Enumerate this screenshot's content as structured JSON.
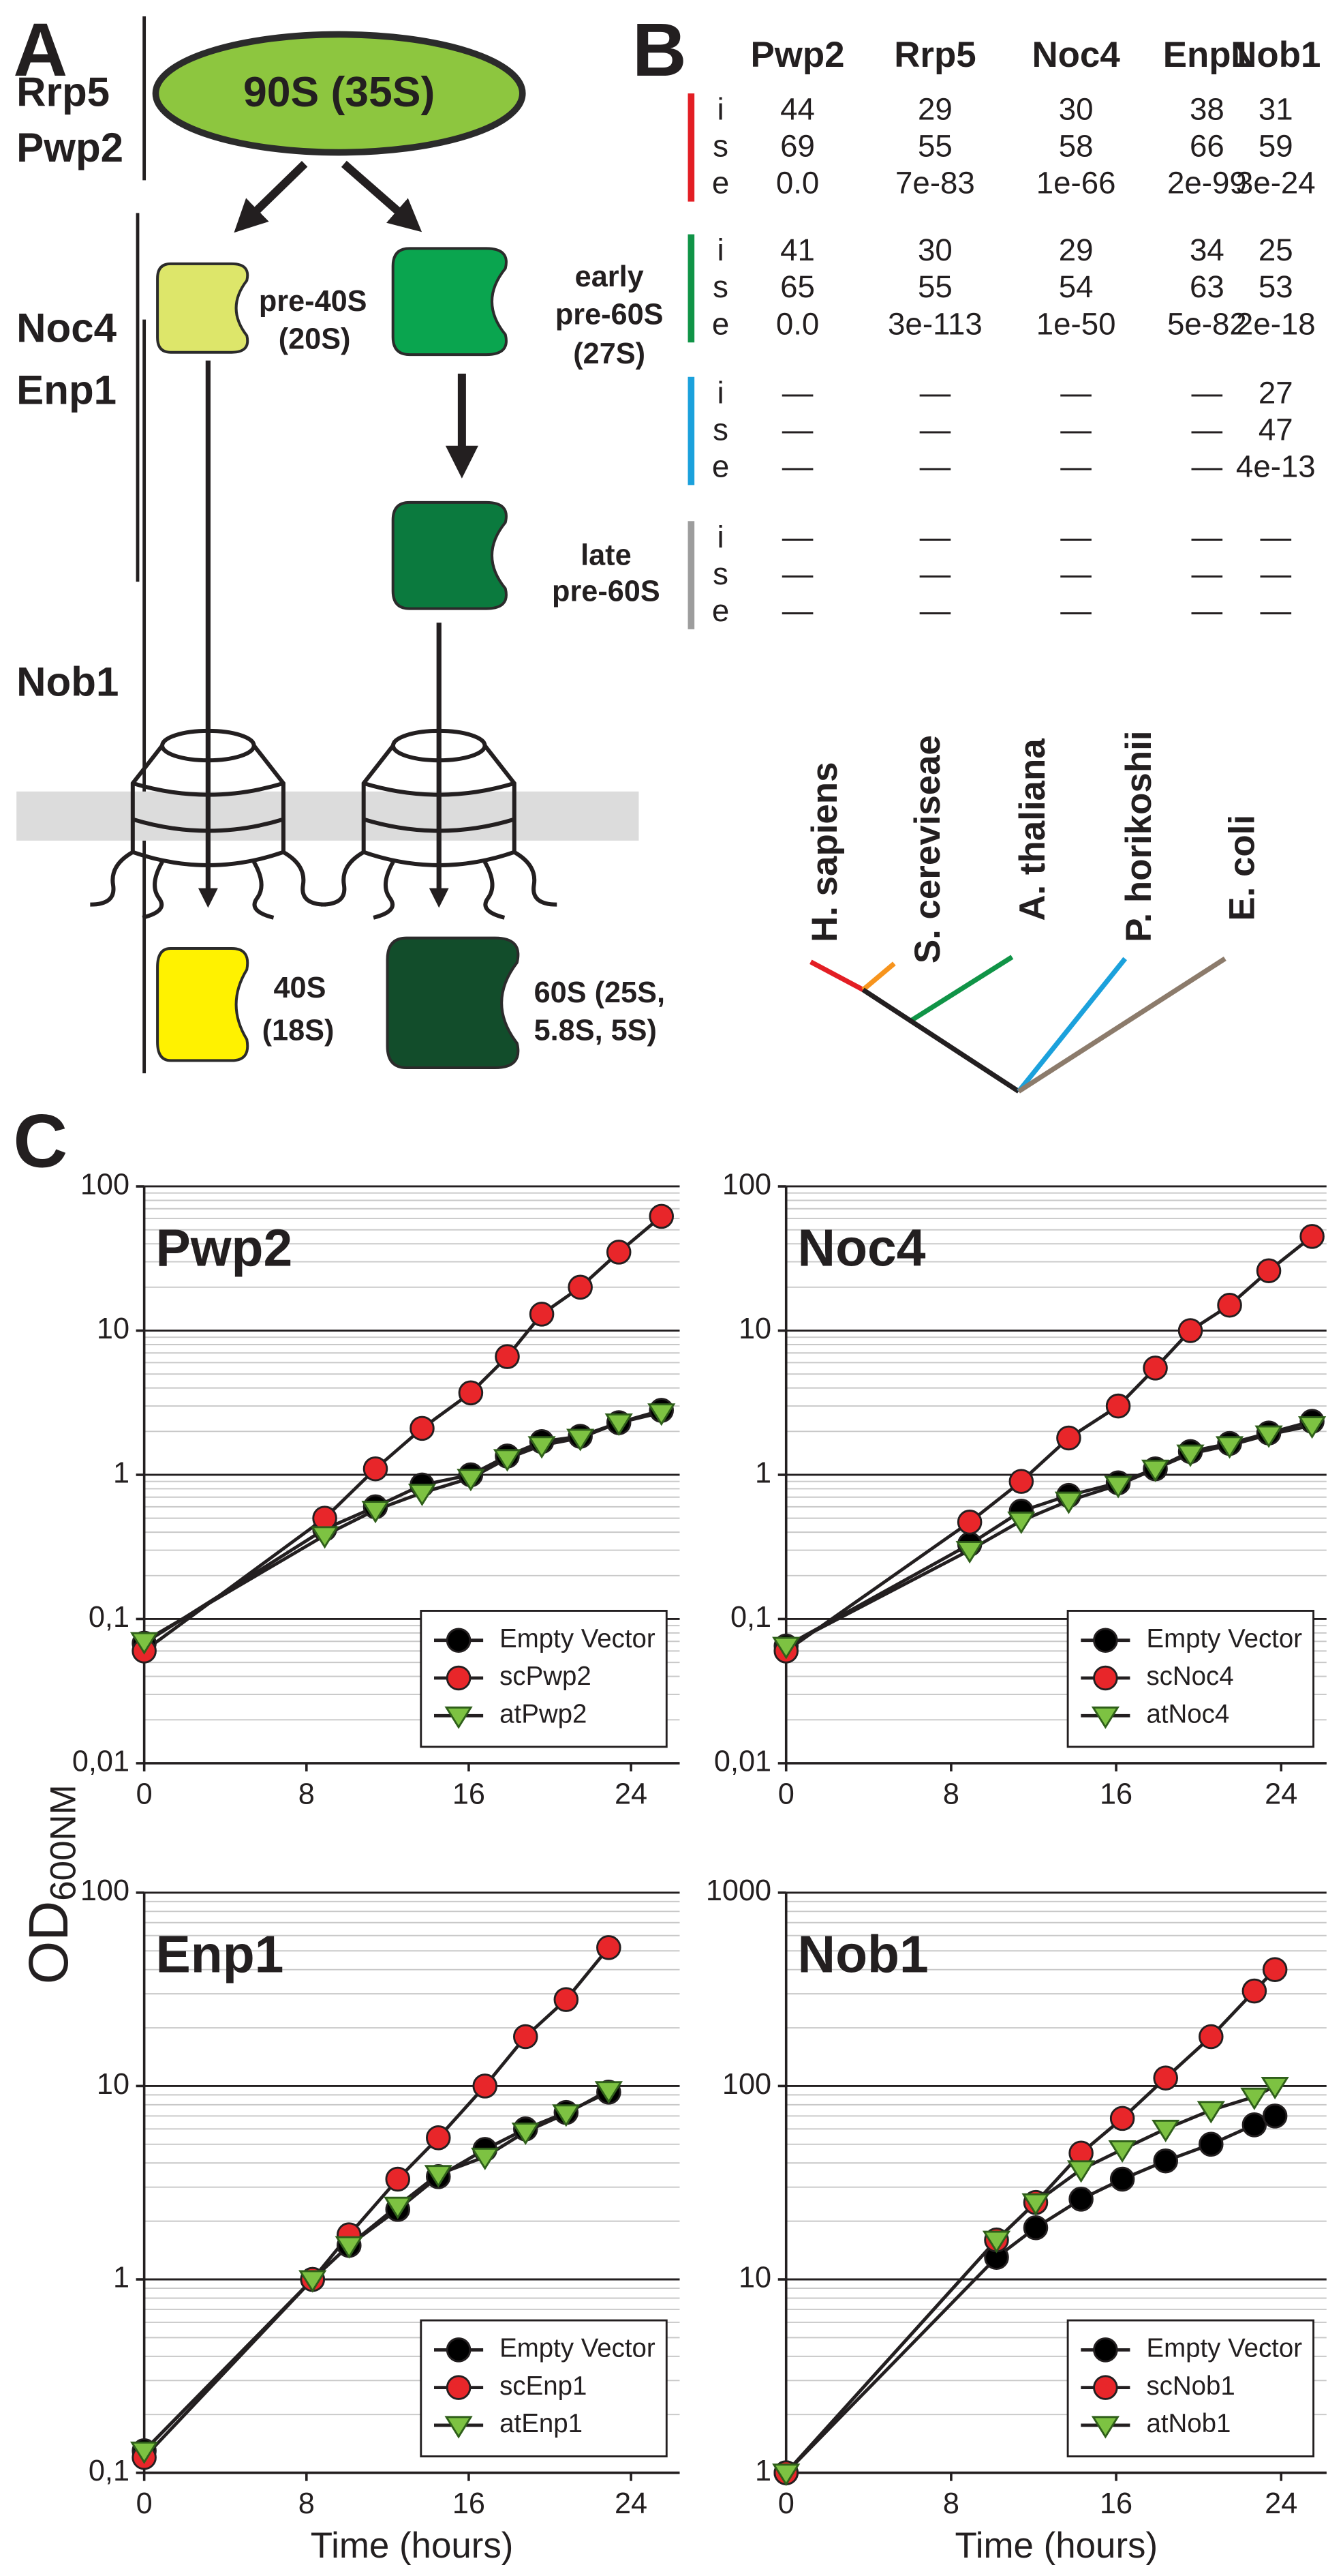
{
  "panel_a": {
    "label": "A",
    "factors": [
      "Rrp5",
      "Pwp2",
      "Noc4",
      "Enp1",
      "Nob1"
    ],
    "stages": [
      {
        "lines": [
          "90S (35S)"
        ]
      },
      {
        "lines": [
          "pre-40S",
          "(20S)"
        ]
      },
      {
        "lines": [
          "early",
          "pre-60S",
          "(27S)"
        ]
      },
      {
        "lines": [
          "late",
          "pre-60S"
        ]
      },
      {
        "lines": [
          "40S",
          "(18S)"
        ]
      },
      {
        "lines": [
          "60S (25S,",
          "5.8S, 5S)"
        ]
      }
    ]
  },
  "panel_b": {
    "label": "B",
    "columns": [
      "Pwp2",
      "Rrp5",
      "Noc4",
      "Enp1",
      "Nob1"
    ],
    "groups": [
      {
        "color": "#e31e24",
        "rows": [
          {
            "label": "i",
            "cells": [
              "44",
              "29",
              "30",
              "38",
              "31"
            ]
          },
          {
            "label": "s",
            "cells": [
              "69",
              "55",
              "58",
              "66",
              "59"
            ]
          },
          {
            "label": "e",
            "cells": [
              "0.0",
              "7e-83",
              "1e-66",
              "2e-99",
              "3e-24"
            ]
          }
        ]
      },
      {
        "color": "#109447",
        "rows": [
          {
            "label": "i",
            "cells": [
              "41",
              "30",
              "29",
              "34",
              "25"
            ]
          },
          {
            "label": "s",
            "cells": [
              "65",
              "55",
              "54",
              "63",
              "53"
            ]
          },
          {
            "label": "e",
            "cells": [
              "0.0",
              "3e-113",
              "1e-50",
              "5e-82",
              "2e-18"
            ]
          }
        ]
      },
      {
        "color": "#1ba1dc",
        "rows": [
          {
            "label": "i",
            "cells": [
              "—",
              "—",
              "—",
              "—",
              "27"
            ]
          },
          {
            "label": "s",
            "cells": [
              "—",
              "—",
              "—",
              "—",
              "47"
            ]
          },
          {
            "label": "e",
            "cells": [
              "—",
              "—",
              "—",
              "—",
              "4e-13"
            ]
          }
        ]
      },
      {
        "color": "#9d9d9d",
        "rows": [
          {
            "label": "i",
            "cells": [
              "—",
              "—",
              "—",
              "—",
              "—"
            ]
          },
          {
            "label": "s",
            "cells": [
              "—",
              "—",
              "—",
              "—",
              "—"
            ]
          },
          {
            "label": "e",
            "cells": [
              "—",
              "—",
              "—",
              "—",
              "—"
            ]
          }
        ]
      }
    ],
    "tree": {
      "species": [
        {
          "name": "H. sapiens",
          "color": "#e31e24"
        },
        {
          "name": "S. cereviseae",
          "color": "#f7941d"
        },
        {
          "name": "A. thaliana",
          "color": "#109447"
        },
        {
          "name": "P. horikoshii",
          "color": "#1ba1dc"
        },
        {
          "name": "E. coli",
          "color": "#8c7b6b"
        }
      ]
    }
  },
  "panel_c_label": "C",
  "shared_y_label": {
    "text": "OD",
    "subscript": "600NM"
  },
  "chart_data": [
    {
      "type": "line",
      "title": "Pwp2",
      "log_y": true,
      "grid": true,
      "legend": "lower right",
      "x": [
        0,
        8.9,
        11.4,
        13.7,
        16.1,
        17.9,
        19.6,
        21.5,
        23.4,
        25.5
      ],
      "xlim": [
        0,
        26.4
      ],
      "xticks": [
        0,
        8,
        16,
        24
      ],
      "ylim": [
        0.01,
        100
      ],
      "yticks": [
        100,
        10,
        1,
        {
          "value": 0.1,
          "label": "0,1"
        },
        {
          "value": 0.01,
          "label": "0,01"
        }
      ],
      "series": [
        {
          "name": "Empty Vector",
          "color": "#000000",
          "marker": "circle",
          "values": [
            0.068,
            0.42,
            0.6,
            0.85,
            1.0,
            1.35,
            1.7,
            1.85,
            2.3,
            2.8
          ]
        },
        {
          "name": "scPwp2",
          "color": "#e8262a",
          "marker": "circle",
          "values": [
            0.06,
            0.5,
            1.1,
            2.1,
            3.7,
            6.6,
            13,
            20,
            35,
            62
          ]
        },
        {
          "name": "atPwp2",
          "color": "#7dc242",
          "marker": "triangle",
          "values": [
            0.07,
            0.38,
            0.57,
            0.75,
            0.95,
            1.3,
            1.6,
            1.8,
            2.3,
            2.7
          ]
        }
      ]
    },
    {
      "type": "line",
      "title": "Noc4",
      "log_y": true,
      "grid": true,
      "legend": "lower right",
      "x": [
        0,
        8.9,
        11.4,
        13.7,
        16.1,
        17.9,
        19.6,
        21.5,
        23.4,
        25.5
      ],
      "xlim": [
        0,
        26.2
      ],
      "xticks": [
        0,
        8,
        16,
        24
      ],
      "ylim": [
        0.01,
        100
      ],
      "yticks": [
        100,
        10,
        1,
        {
          "value": 0.1,
          "label": "0,1"
        },
        {
          "value": 0.01,
          "label": "0,01"
        }
      ],
      "series": [
        {
          "name": "Empty Vector",
          "color": "#000000",
          "marker": "circle",
          "values": [
            0.065,
            0.33,
            0.56,
            0.72,
            0.88,
            1.1,
            1.45,
            1.65,
            1.95,
            2.35
          ]
        },
        {
          "name": "scNoc4",
          "color": "#e8262a",
          "marker": "circle",
          "values": [
            0.06,
            0.47,
            0.9,
            1.8,
            3.0,
            5.5,
            10,
            15,
            26,
            45
          ]
        },
        {
          "name": "atNoc4",
          "color": "#7dc242",
          "marker": "triangle",
          "values": [
            0.065,
            0.3,
            0.48,
            0.66,
            0.85,
            1.1,
            1.4,
            1.6,
            1.9,
            2.2
          ]
        }
      ]
    },
    {
      "type": "line",
      "title": "Enp1",
      "log_y": true,
      "grid": true,
      "legend": "lower right",
      "xlabel": "Time (hours)",
      "x": [
        0,
        8.3,
        10.1,
        12.5,
        14.5,
        16.8,
        18.8,
        20.8,
        22.9
      ],
      "xlim": [
        0,
        26.4
      ],
      "xticks": [
        0,
        8,
        16,
        24
      ],
      "ylim": [
        0.1,
        100
      ],
      "yticks": [
        100,
        10,
        1,
        {
          "value": 0.1,
          "label": "0,1"
        }
      ],
      "series": [
        {
          "name": "Empty Vector",
          "color": "#000000",
          "marker": "circle",
          "values": [
            0.13,
            1.0,
            1.5,
            2.3,
            3.4,
            4.7,
            6.0,
            7.3,
            9.3
          ]
        },
        {
          "name": "scEnp1",
          "color": "#e8262a",
          "marker": "circle",
          "values": [
            0.12,
            1.0,
            1.7,
            3.3,
            5.4,
            10,
            18,
            28,
            52
          ]
        },
        {
          "name": "atEnp1",
          "color": "#7dc242",
          "marker": "triangle",
          "values": [
            0.13,
            1.0,
            1.5,
            2.4,
            3.5,
            4.3,
            5.8,
            7.2,
            9.5
          ]
        }
      ]
    },
    {
      "type": "line",
      "title": "Nob1",
      "log_y": true,
      "grid": true,
      "legend": "lower right",
      "xlabel": "Time (hours)",
      "x": [
        0,
        10.2,
        12.1,
        14.3,
        16.3,
        18.4,
        20.6,
        22.7,
        23.7
      ],
      "xlim": [
        0,
        26.2
      ],
      "xticks": [
        0,
        8,
        16,
        24
      ],
      "ylim": [
        1,
        1000
      ],
      "yticks": [
        1000,
        100,
        10,
        1
      ],
      "series": [
        {
          "name": "Empty Vector",
          "color": "#000000",
          "marker": "circle",
          "values": [
            1,
            13,
            18.5,
            26,
            33,
            41,
            50,
            63,
            70
          ]
        },
        {
          "name": "scNob1",
          "color": "#e8262a",
          "marker": "circle",
          "values": [
            1,
            16,
            25,
            45,
            68,
            110,
            180,
            310,
            400
          ]
        },
        {
          "name": "atNob1",
          "color": "#7dc242",
          "marker": "triangle",
          "values": [
            1,
            16,
            25,
            37,
            47,
            60,
            75,
            88,
            100
          ]
        }
      ]
    }
  ]
}
